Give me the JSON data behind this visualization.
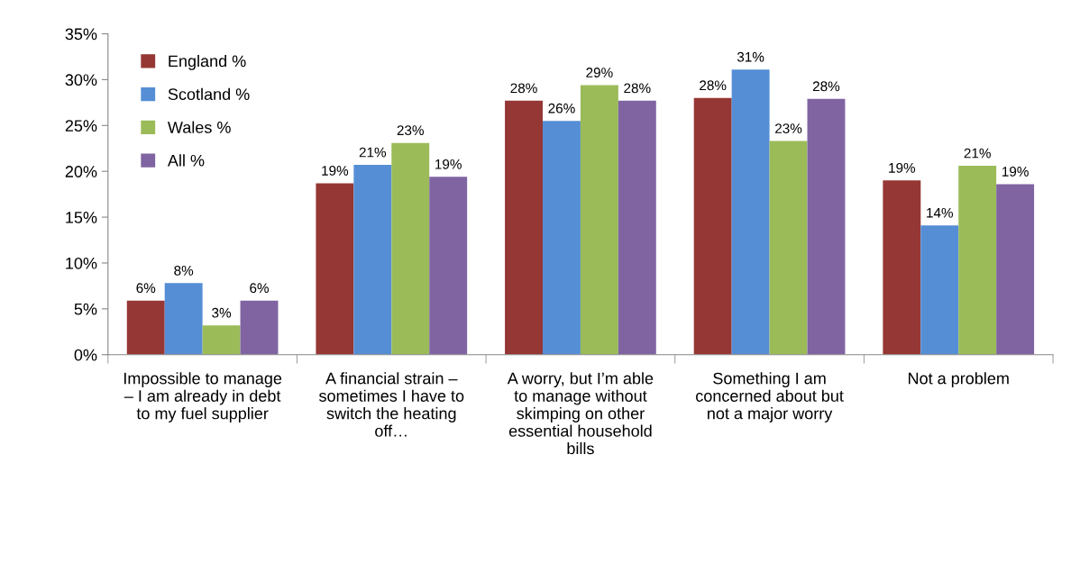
{
  "chart_data": {
    "type": "bar",
    "categories": [
      "Impossible to manage\n– I am already in debt\nto my fuel supplier",
      "A financial strain –\nsometimes I have to\nswitch the heating\noff…",
      "A worry, but I’m able\nto manage without\nskimping on other\nessential household\nbills",
      "Something I am\nconcerned about but\nnot a major worry",
      "Not a problem"
    ],
    "series": [
      {
        "name": "England %",
        "color": "#953735",
        "values": [
          5.9,
          18.7,
          27.7,
          28.0,
          19.0
        ],
        "value_labels": [
          "6%",
          "19%",
          "28%",
          "28%",
          "19%"
        ]
      },
      {
        "name": "Scotland %",
        "color": "#558ed5",
        "values": [
          7.8,
          20.7,
          25.5,
          31.1,
          14.1
        ],
        "value_labels": [
          "8%",
          "21%",
          "26%",
          "31%",
          "14%"
        ]
      },
      {
        "name": "Wales %",
        "color": "#9bbb59",
        "values": [
          3.2,
          23.1,
          29.4,
          23.3,
          20.6
        ],
        "value_labels": [
          "3%",
          "23%",
          "29%",
          "23%",
          "21%"
        ]
      },
      {
        "name": "All %",
        "color": "#8064a2",
        "values": [
          5.9,
          19.4,
          27.7,
          27.9,
          18.6
        ],
        "value_labels": [
          "6%",
          "19%",
          "28%",
          "28%",
          "19%"
        ]
      }
    ],
    "ylim": [
      0,
      35
    ],
    "yticks": [
      {
        "value": 0,
        "label": "0%"
      },
      {
        "value": 5,
        "label": "5%"
      },
      {
        "value": 10,
        "label": "10%"
      },
      {
        "value": 15,
        "label": "15%"
      },
      {
        "value": 20,
        "label": "20%"
      },
      {
        "value": 25,
        "label": "25%"
      },
      {
        "value": 30,
        "label": "30%"
      },
      {
        "value": 35,
        "label": "35%"
      }
    ],
    "grid": false,
    "legend": "top left"
  }
}
